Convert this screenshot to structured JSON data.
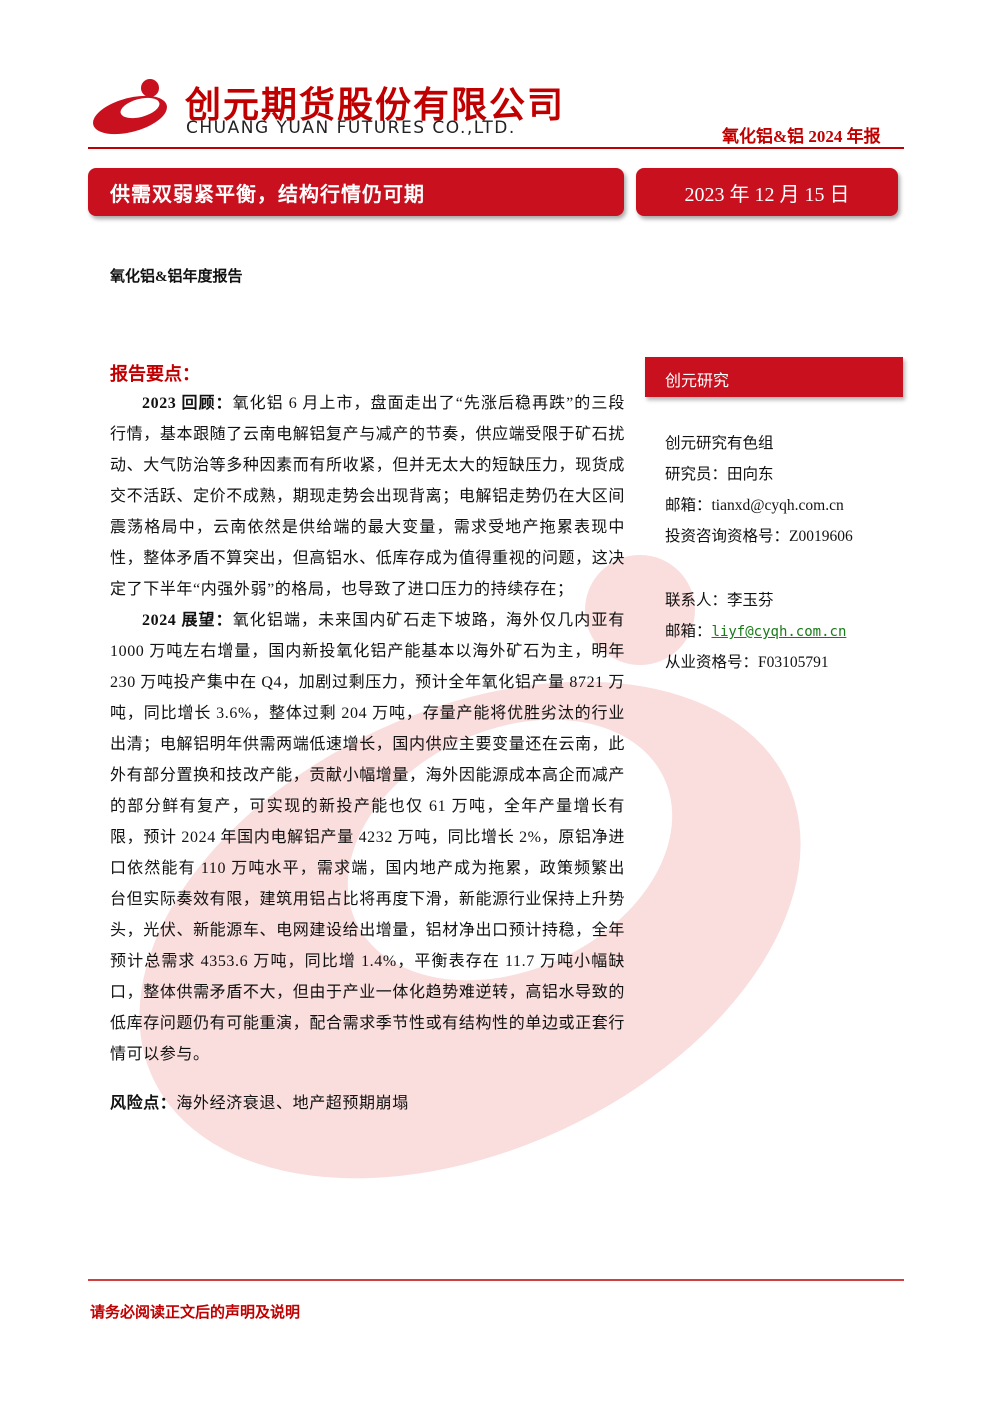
{
  "header": {
    "company_cn": "创元期货股份有限公司",
    "company_en": "CHUANG YUAN FUTURES CO.,LTD.",
    "report_tag": "氧化铝&铝 2024 年报"
  },
  "banner": {
    "title": "供需双弱紧平衡，结构行情仍可期",
    "date": "2023 年 12 月 15 日"
  },
  "subtitle": "氧化铝&铝年度报告",
  "summary": {
    "heading": "报告要点：",
    "paragraphs": [
      {
        "lead": "2023 回顾：",
        "text": "氧化铝 6 月上市，盘面走出了“先涨后稳再跌”的三段行情，基本跟随了云南电解铝复产与减产的节奏，供应端受限于矿石扰动、大气防治等多种因素而有所收紧，但并无太大的短缺压力，现货成交不活跃、定价不成熟，期现走势会出现背离；电解铝走势仍在大区间震荡格局中，云南依然是供给端的最大变量，需求受地产拖累表现中性，整体矛盾不算突出，但高铝水、低库存成为值得重视的问题，这决定了下半年“内强外弱”的格局，也导致了进口压力的持续存在；"
      },
      {
        "lead": "2024 展望：",
        "text": "氧化铝端，未来国内矿石走下坡路，海外仅几内亚有 1000 万吨左右增量，国内新投氧化铝产能基本以海外矿石为主，明年 230 万吨投产集中在 Q4，加剧过剩压力，预计全年氧化铝产量 8721 万吨，同比增长 3.6%，整体过剩 204 万吨，存量产能将优胜劣汰的行业出清；电解铝明年供需两端低速增长，国内供应主要变量还在云南，此外有部分置换和技改产能，贡献小幅增量，海外因能源成本高企而减产的部分鲜有复产，可实现的新投产能也仅 61 万吨，全年产量增长有限，预计 2024 年国内电解铝产量 4232 万吨，同比增长 2%，原铝净进口依然能有 110 万吨水平，需求端，国内地产成为拖累，政策频繁出台但实际奏效有限，建筑用铝占比将再度下滑，新能源行业保持上升势头，光伏、新能源车、电网建设给出增量，铝材净出口预计持稳，全年预计总需求 4353.6 万吨，同比增 1.4%，平衡表存在 11.7 万吨小幅缺口，整体供需矛盾不大，但由于产业一体化趋势难逆转，高铝水导致的低库存问题仍有可能重演，配合需求季节性或有结构性的单边或正套行情可以参与。"
      }
    ],
    "risk": {
      "lead": "风险点：",
      "text": "海外经济衰退、地产超预期崩塌"
    }
  },
  "sidebar": {
    "title": "创元研究",
    "research": [
      "创元研究有色组",
      "研究员：田向东",
      "邮箱：tianxd@cyqh.com.cn",
      "投资咨询资格号：Z0019606"
    ],
    "contact": {
      "name": "联系人：李玉芬",
      "email_label": "邮箱：",
      "email": "liyf@cyqh.com.cn",
      "license": "从业资格号：F03105791"
    }
  },
  "footer": "请务必阅读正文后的声明及说明"
}
